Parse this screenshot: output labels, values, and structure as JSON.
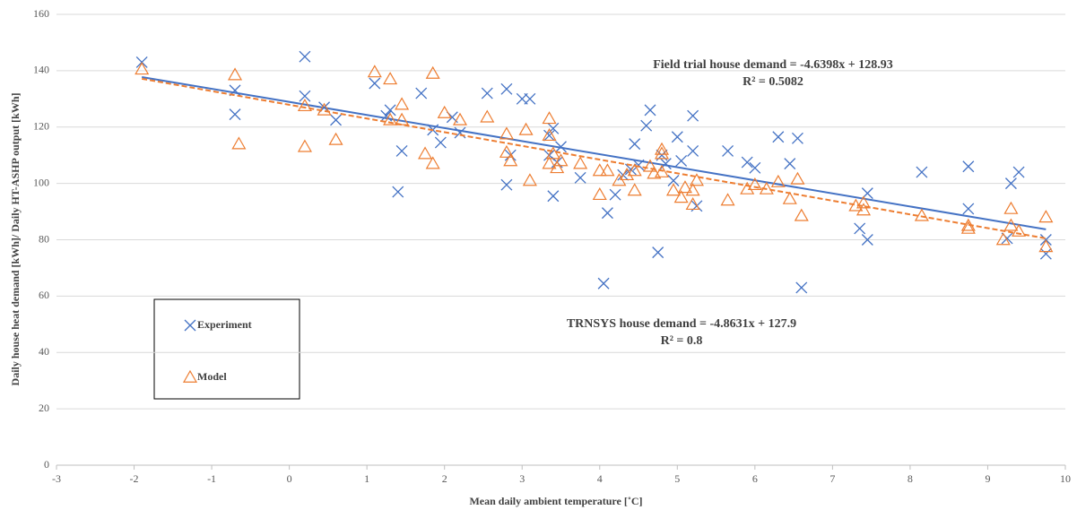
{
  "chart_data": {
    "type": "scatter",
    "x_label": "Mean daily ambient temperature [˚C]",
    "y_label": "Daily house heat demand [kWh]/ Daily HT-ASHP output [kWh]",
    "xlim": [
      -3,
      10
    ],
    "xticks": [
      -3,
      -2,
      -1,
      0,
      1,
      2,
      3,
      4,
      5,
      6,
      7,
      8,
      9,
      10
    ],
    "ylim": [
      0,
      160
    ],
    "yticks": [
      0,
      20,
      40,
      60,
      80,
      100,
      120,
      140,
      160
    ],
    "grid": true,
    "series": [
      {
        "name": "Experiment",
        "color": "#4472c4",
        "marker": "x",
        "x": [
          -1.9,
          -0.7,
          -0.7,
          0.2,
          0.2,
          0.45,
          0.6,
          1.1,
          1.25,
          1.3,
          1.45,
          1.4,
          1.7,
          1.85,
          1.95,
          2.1,
          2.2,
          2.55,
          2.8,
          2.8,
          2.85,
          3.0,
          3.1,
          3.35,
          3.35,
          3.4,
          3.4,
          3.45,
          3.5,
          3.75,
          4.05,
          4.1,
          4.2,
          4.3,
          4.45,
          4.4,
          4.5,
          4.6,
          4.65,
          4.75,
          4.8,
          4.85,
          4.95,
          5.0,
          5.05,
          5.2,
          5.2,
          5.25,
          5.65,
          5.9,
          6.0,
          6.3,
          6.45,
          6.55,
          6.6,
          7.35,
          7.45,
          7.45,
          8.15,
          8.75,
          8.75,
          9.25,
          9.3,
          9.4,
          9.75,
          9.75
        ],
        "y": [
          143,
          133,
          124.5,
          145,
          131,
          127,
          122.5,
          135.5,
          124,
          126,
          111.5,
          97,
          132,
          119,
          114.5,
          123.5,
          118,
          132,
          133.5,
          99.5,
          110,
          130,
          130,
          117,
          110,
          119.5,
          95.5,
          107.5,
          113,
          102,
          64.5,
          89.5,
          96,
          103,
          114,
          105,
          106.5,
          120.5,
          126,
          75.5,
          110,
          107,
          101,
          116.5,
          108,
          124,
          111.5,
          92,
          111.5,
          107.5,
          105.5,
          116.5,
          107,
          116,
          63,
          84,
          96.5,
          80,
          104,
          106,
          91,
          80.5,
          100,
          104,
          80,
          75
        ],
        "trendline": {
          "slope": -4.6398,
          "intercept": 128.93,
          "equation": "Field trial house demand = -4.6398x + 128.93",
          "r_squared": "R² = 0.5082"
        }
      },
      {
        "name": "Model",
        "color": "#ed7d31",
        "marker": "triangle",
        "x": [
          -1.9,
          -0.7,
          -0.65,
          0.2,
          0.2,
          0.45,
          0.6,
          1.1,
          1.3,
          1.3,
          1.45,
          1.45,
          1.75,
          1.85,
          1.85,
          2.0,
          2.2,
          2.55,
          2.8,
          2.8,
          2.85,
          3.05,
          3.1,
          3.35,
          3.35,
          3.35,
          3.4,
          3.45,
          3.5,
          3.75,
          4.0,
          4.0,
          4.1,
          4.25,
          4.35,
          4.45,
          4.45,
          4.65,
          4.7,
          4.8,
          4.8,
          4.8,
          4.95,
          5.05,
          5.1,
          5.2,
          5.2,
          5.25,
          5.65,
          5.9,
          6.0,
          6.15,
          6.3,
          6.45,
          6.55,
          6.6,
          7.3,
          7.4,
          7.4,
          8.15,
          8.75,
          8.75,
          9.2,
          9.3,
          9.3,
          9.4,
          9.75,
          9.75
        ],
        "y": [
          140.5,
          138.5,
          114,
          127.5,
          113,
          126,
          115.5,
          139.5,
          137,
          122.5,
          128,
          122.5,
          110.5,
          139,
          107,
          125,
          122.5,
          123.5,
          117.5,
          111,
          108,
          119,
          101,
          123,
          117,
          107,
          110.5,
          105.5,
          108,
          107,
          104.5,
          96,
          104.5,
          101,
          103,
          97.5,
          104.5,
          106,
          103.5,
          112,
          110.5,
          104,
          97.5,
          95,
          98.5,
          92.5,
          97.5,
          101,
          94,
          98,
          99.5,
          98,
          100.5,
          94.5,
          101.5,
          88.5,
          92,
          90.5,
          93,
          88.5,
          84,
          85,
          80,
          85,
          91,
          83,
          88,
          77.5
        ],
        "trendline": {
          "slope": -4.8631,
          "intercept": 127.9,
          "equation": "TRNSYS house demand = -4.8631x + 127.9",
          "r_squared": "R² = 0.8"
        }
      }
    ]
  }
}
